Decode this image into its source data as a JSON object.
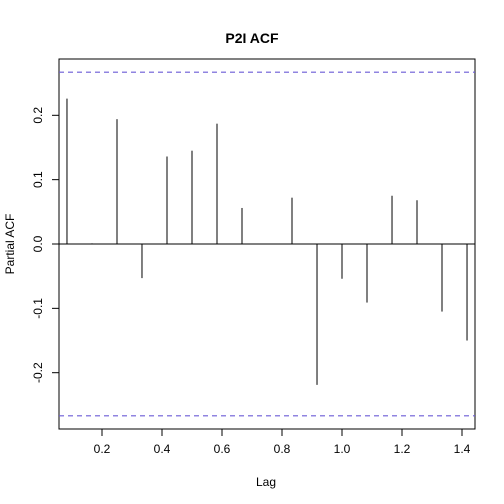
{
  "chart_data": {
    "type": "bar",
    "title": "P2I ACF",
    "xlabel": "Lag",
    "ylabel": "Partial ACF",
    "xlim": [
      0.0567,
      1.4433
    ],
    "ylim": [
      -0.2875,
      0.2875
    ],
    "x_ticks": [
      0.2,
      0.4,
      0.6,
      0.8,
      1.0,
      1.2,
      1.4
    ],
    "x_tick_labels": [
      "0.2",
      "0.4",
      "0.6",
      "0.8",
      "1.0",
      "1.2",
      "1.4"
    ],
    "y_ticks": [
      -0.2,
      -0.1,
      0.0,
      0.1,
      0.2
    ],
    "y_tick_labels": [
      "-0.2",
      "-0.1",
      "0.0",
      "0.1",
      "0.2"
    ],
    "series": [
      {
        "x": [
          0.0833,
          0.1667,
          0.25,
          0.3333,
          0.4167,
          0.5,
          0.5833,
          0.6667,
          0.75,
          0.8333,
          0.9167,
          1.0,
          1.0833,
          1.1667,
          1.25,
          1.3333,
          1.4167
        ],
        "values": [
          0.226,
          0.001,
          0.194,
          -0.053,
          0.136,
          0.145,
          0.187,
          0.056,
          0.0,
          0.072,
          -0.219,
          -0.054,
          -0.091,
          0.075,
          0.068,
          -0.105,
          -0.15
        ]
      }
    ],
    "confidence_bounds": [
      0.267,
      -0.267
    ],
    "colors": {
      "bars": "#000000",
      "bounds": "#6b5bd6",
      "axes": "#000000"
    },
    "grid": false
  }
}
